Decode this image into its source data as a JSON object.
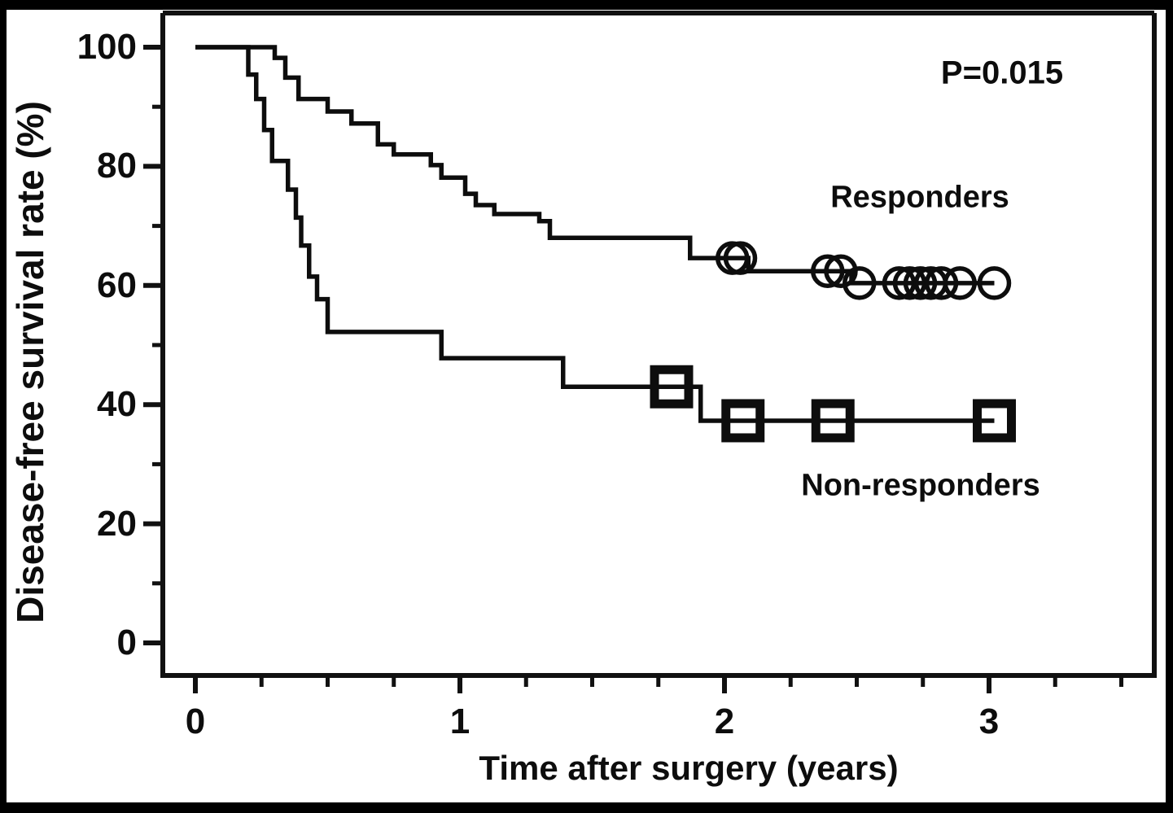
{
  "figure": {
    "p_value_label": "P=0.015"
  },
  "chart_data": {
    "type": "line",
    "subtype": "kaplan-meier-step",
    "title": "",
    "xlabel": "Time after surgery (years)",
    "ylabel": "Disease-free survival rate (%)",
    "p_value_label": "P=0.015",
    "xlim": [
      0,
      3.63
    ],
    "ylim": [
      0,
      100
    ],
    "grid": false,
    "x_tick_labels": [
      "0",
      "1",
      "2",
      "3"
    ],
    "x_ticks_major": [
      0,
      1,
      2,
      3
    ],
    "x_ticks_minor": [
      0.25,
      0.5,
      0.75,
      1.25,
      1.5,
      1.75,
      2.25,
      2.5,
      2.75,
      3.25,
      3.5
    ],
    "y_tick_labels": [
      "100",
      "80",
      "60",
      "40",
      "20",
      "0"
    ],
    "y_ticks_major": [
      100,
      80,
      60,
      40,
      20,
      0
    ],
    "y_ticks_minor": [
      90,
      70,
      50,
      30,
      10
    ],
    "series": [
      {
        "name": "Responders",
        "marker": "circle",
        "color": "#0d0d0d",
        "end_t": 3.02,
        "steps": [
          [
            0,
            100
          ],
          [
            0.3,
            98.2
          ],
          [
            0.34,
            94.9
          ],
          [
            0.39,
            91.3
          ],
          [
            0.5,
            89.2
          ],
          [
            0.59,
            87.2
          ],
          [
            0.69,
            83.7
          ],
          [
            0.75,
            82.0
          ],
          [
            0.89,
            80.2
          ],
          [
            0.93,
            78.1
          ],
          [
            1.02,
            75.4
          ],
          [
            1.06,
            73.5
          ],
          [
            1.13,
            72.0
          ],
          [
            1.3,
            70.8
          ],
          [
            1.34,
            68.0
          ],
          [
            1.87,
            64.6
          ],
          [
            2.09,
            62.4
          ],
          [
            2.48,
            60.4
          ]
        ],
        "censors": [
          [
            2.03,
            64.6
          ],
          [
            2.06,
            64.6
          ],
          [
            2.39,
            62.4
          ],
          [
            2.44,
            62.4
          ],
          [
            2.51,
            60.4
          ],
          [
            2.66,
            60.4
          ],
          [
            2.7,
            60.4
          ],
          [
            2.74,
            60.4
          ],
          [
            2.78,
            60.4
          ],
          [
            2.82,
            60.4
          ],
          [
            2.89,
            60.4
          ],
          [
            3.02,
            60.4
          ]
        ]
      },
      {
        "name": "Non-responders",
        "marker": "square",
        "color": "#0d0d0d",
        "end_t": 3.02,
        "steps": [
          [
            0,
            100
          ],
          [
            0.2,
            95.4
          ],
          [
            0.23,
            91.3
          ],
          [
            0.26,
            86.1
          ],
          [
            0.29,
            80.9
          ],
          [
            0.35,
            76.1
          ],
          [
            0.38,
            71.4
          ],
          [
            0.4,
            66.7
          ],
          [
            0.43,
            61.5
          ],
          [
            0.46,
            57.7
          ],
          [
            0.5,
            52.2
          ],
          [
            0.93,
            47.8
          ],
          [
            1.39,
            43.0
          ],
          [
            1.91,
            37.3
          ]
        ],
        "censors": [
          [
            1.8,
            43.0
          ],
          [
            2.07,
            37.3
          ],
          [
            2.41,
            37.3
          ],
          [
            3.02,
            37.3
          ]
        ]
      }
    ]
  }
}
